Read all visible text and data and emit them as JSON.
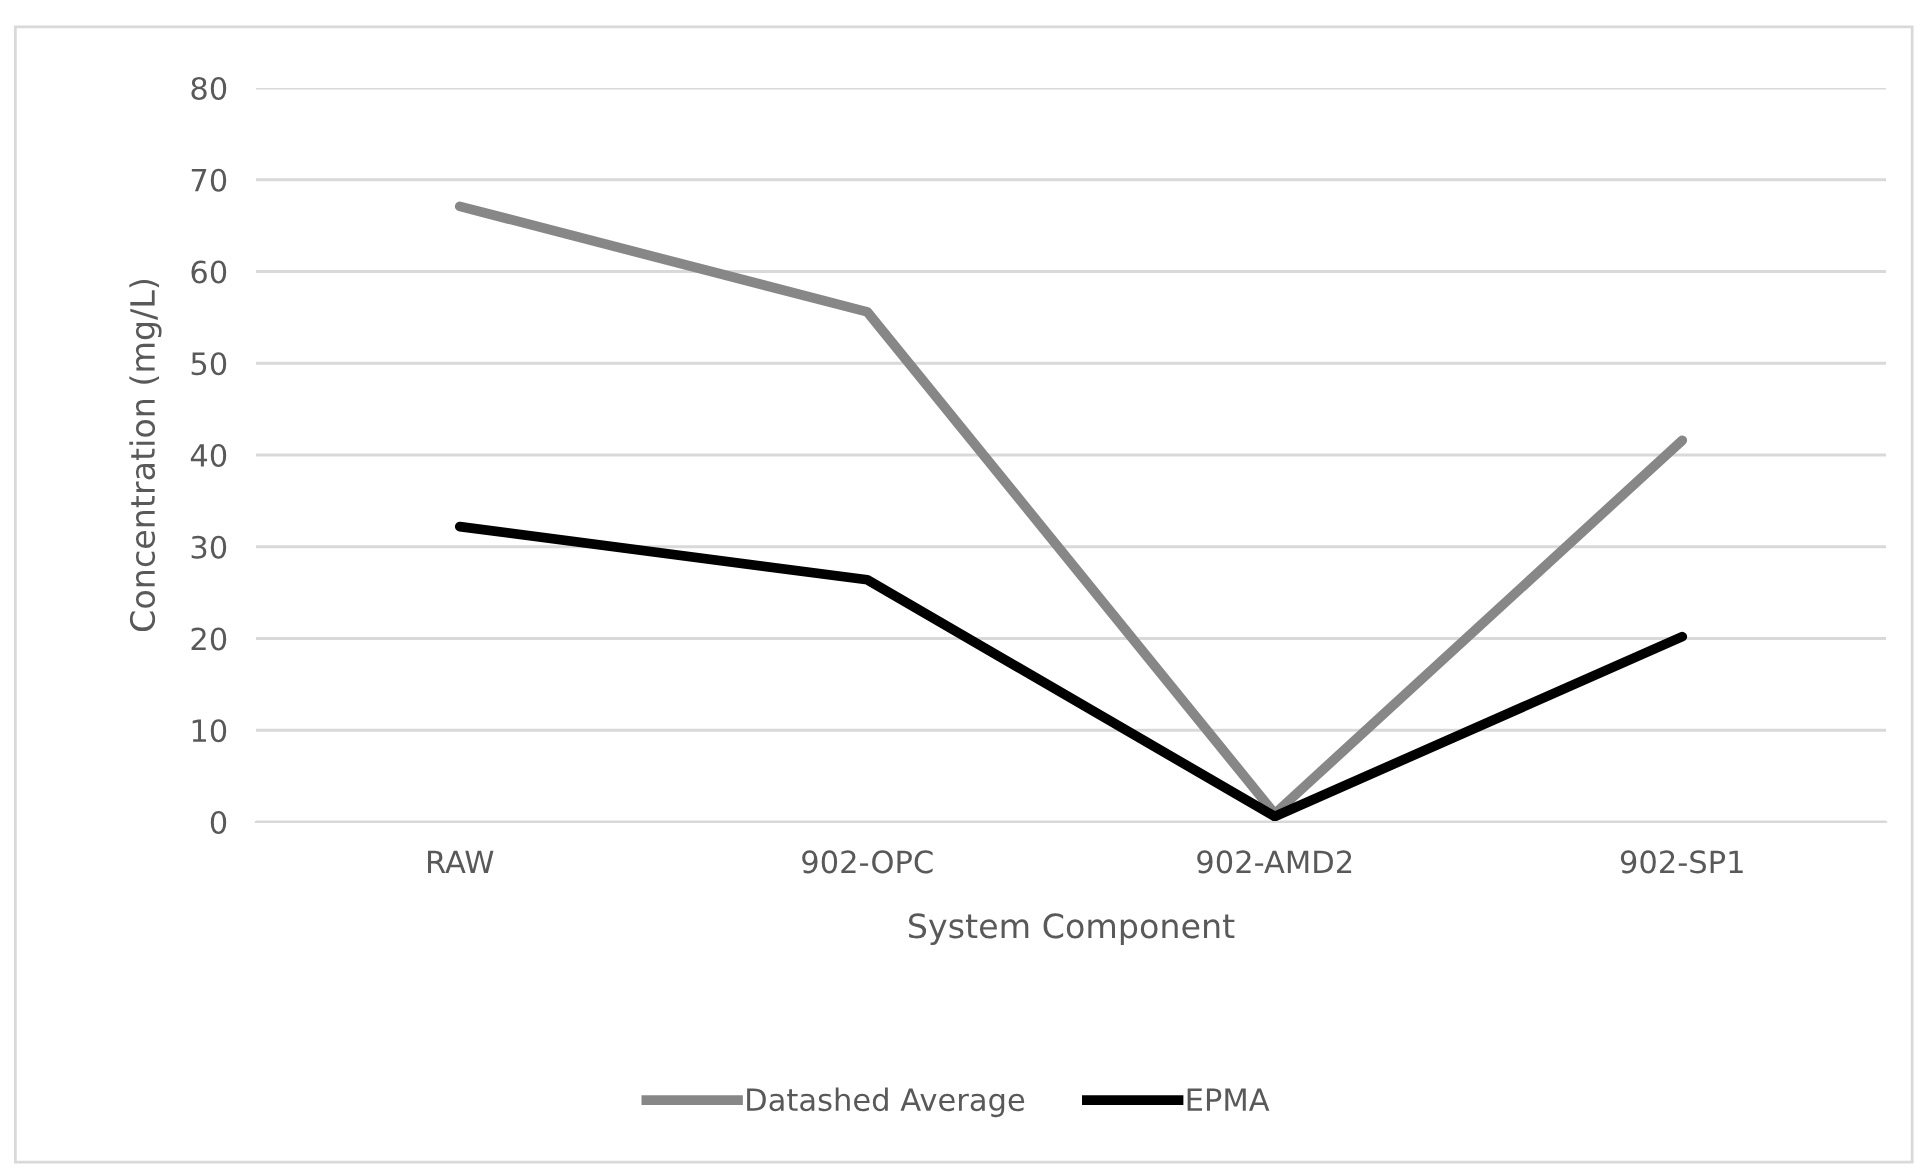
{
  "chart_data": {
    "type": "line",
    "xlabel": "System Component",
    "ylabel": "Concentration (mg/L)",
    "categories": [
      "RAW",
      "902-OPC",
      "902-AMD2",
      "902-SP1"
    ],
    "series": [
      {
        "name": "Datashed Average",
        "color": "#878787",
        "values": [
          67.1,
          55.6,
          0.9,
          41.6
        ]
      },
      {
        "name": "EPMA",
        "color": "#000000",
        "values": [
          32.2,
          26.4,
          0.6,
          20.2
        ]
      }
    ],
    "ylim": [
      0,
      80
    ],
    "yticks": [
      0,
      10,
      20,
      30,
      40,
      50,
      60,
      70,
      80
    ],
    "grid": "y",
    "legend": "bottom",
    "marker": "none",
    "line_style": "solid"
  }
}
